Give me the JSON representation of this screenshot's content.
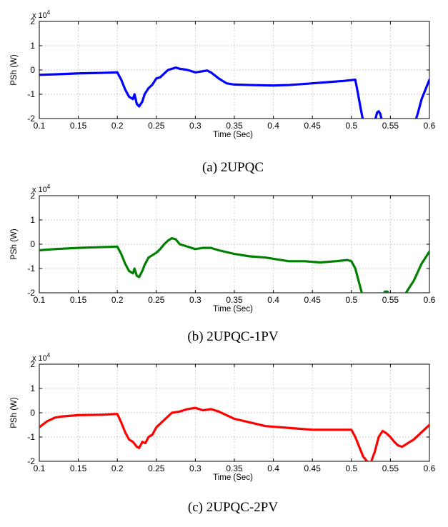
{
  "chart_data": [
    {
      "type": "line",
      "caption": "(a) 2UPQC",
      "xlabel": "Time (Sec)",
      "ylabel": "PSh (W)",
      "multiplier": "x 10",
      "multiplier_exp": "4",
      "xlim": [
        0.1,
        0.6
      ],
      "ylim": [
        -2,
        2
      ],
      "xticks": [
        "0.1",
        "0.15",
        "0.2",
        "0.25",
        "0.3",
        "0.35",
        "0.4",
        "0.45",
        "0.5",
        "0.55",
        "0.6"
      ],
      "yticks": [
        "-2",
        "-1",
        "0",
        "1",
        "2"
      ],
      "grid": true,
      "color": "#0000ff",
      "series": [
        {
          "x": [
            0.1,
            0.12,
            0.15,
            0.18,
            0.2,
            0.205,
            0.21,
            0.215,
            0.22,
            0.222,
            0.225,
            0.228,
            0.232,
            0.235,
            0.24,
            0.245,
            0.25,
            0.255,
            0.26,
            0.265,
            0.27,
            0.275,
            0.28,
            0.29,
            0.3,
            0.31,
            0.315,
            0.32,
            0.33,
            0.34,
            0.35,
            0.37,
            0.4,
            0.42,
            0.45,
            0.47,
            0.49,
            0.505,
            0.508,
            0.512,
            0.515,
            0.52,
            0.525,
            0.53,
            0.533,
            0.535,
            0.537,
            0.54,
            0.545,
            0.55,
            0.56,
            0.57,
            0.58,
            0.585,
            0.59,
            0.595,
            0.6
          ],
          "y": [
            -0.2,
            -0.18,
            -0.14,
            -0.12,
            -0.1,
            -0.4,
            -0.8,
            -1.1,
            -1.2,
            -1.0,
            -1.4,
            -1.5,
            -1.3,
            -1.0,
            -0.75,
            -0.6,
            -0.35,
            -0.3,
            -0.15,
            0.0,
            0.05,
            0.1,
            0.05,
            0.0,
            -0.1,
            -0.05,
            -0.02,
            -0.1,
            -0.35,
            -0.55,
            -0.6,
            -0.62,
            -0.64,
            -0.62,
            -0.55,
            -0.5,
            -0.45,
            -0.4,
            -0.9,
            -1.6,
            -2.1,
            -2.4,
            -2.5,
            -2.1,
            -1.75,
            -1.7,
            -1.8,
            -2.2,
            -2.5,
            -2.5,
            -2.5,
            -2.5,
            -2.3,
            -1.8,
            -1.2,
            -0.8,
            -0.4
          ]
        }
      ]
    },
    {
      "type": "line",
      "caption": "(b) 2UPQC-1PV",
      "xlabel": "Time (Sec)",
      "ylabel": "PSh (W)",
      "multiplier": "x 10",
      "multiplier_exp": "4",
      "xlim": [
        0.1,
        0.6
      ],
      "ylim": [
        -2,
        2
      ],
      "xticks": [
        "0.1",
        "0.15",
        "0.2",
        "0.25",
        "0.3",
        "0.35",
        "0.4",
        "0.45",
        "0.5",
        "0.55",
        "0.6"
      ],
      "yticks": [
        "-2",
        "-1",
        "0",
        "1",
        "2"
      ],
      "grid": true,
      "color": "#007f00",
      "series": [
        {
          "x": [
            0.1,
            0.12,
            0.15,
            0.18,
            0.2,
            0.205,
            0.21,
            0.215,
            0.22,
            0.222,
            0.225,
            0.228,
            0.232,
            0.235,
            0.24,
            0.245,
            0.25,
            0.255,
            0.26,
            0.265,
            0.27,
            0.275,
            0.28,
            0.29,
            0.3,
            0.31,
            0.32,
            0.33,
            0.35,
            0.37,
            0.39,
            0.4,
            0.42,
            0.44,
            0.46,
            0.48,
            0.495,
            0.5,
            0.505,
            0.51,
            0.515,
            0.52,
            0.53,
            0.54,
            0.543,
            0.546,
            0.55,
            0.555,
            0.56,
            0.57,
            0.58,
            0.59,
            0.6
          ],
          "y": [
            -0.25,
            -0.2,
            -0.15,
            -0.12,
            -0.1,
            -0.4,
            -0.8,
            -1.1,
            -1.2,
            -1.0,
            -1.3,
            -1.35,
            -1.1,
            -0.85,
            -0.55,
            -0.45,
            -0.35,
            -0.2,
            0.0,
            0.15,
            0.25,
            0.2,
            0.0,
            -0.1,
            -0.2,
            -0.15,
            -0.15,
            -0.25,
            -0.4,
            -0.5,
            -0.55,
            -0.6,
            -0.7,
            -0.7,
            -0.75,
            -0.7,
            -0.65,
            -0.7,
            -1.0,
            -1.6,
            -2.2,
            -2.5,
            -2.5,
            -2.1,
            -1.95,
            -1.95,
            -2.1,
            -2.5,
            -2.5,
            -2.0,
            -1.5,
            -0.8,
            -0.3
          ]
        }
      ]
    },
    {
      "type": "line",
      "caption": "(c) 2UPQC-2PV",
      "xlabel": "Time (Sec)",
      "ylabel": "PSh (W)",
      "multiplier": "x 10",
      "multiplier_exp": "4",
      "xlim": [
        0.1,
        0.6
      ],
      "ylim": [
        -2,
        2
      ],
      "xticks": [
        "0.1",
        "0.15",
        "0.2",
        "0.25",
        "0.3",
        "0.35",
        "0.4",
        "0.45",
        "0.5",
        "0.55",
        "0.6"
      ],
      "yticks": [
        "-2",
        "-1",
        "0",
        "1",
        "2"
      ],
      "grid": true,
      "color": "#ff0000",
      "series": [
        {
          "x": [
            0.1,
            0.11,
            0.12,
            0.13,
            0.15,
            0.18,
            0.2,
            0.205,
            0.21,
            0.215,
            0.22,
            0.225,
            0.228,
            0.232,
            0.236,
            0.24,
            0.245,
            0.25,
            0.26,
            0.27,
            0.28,
            0.29,
            0.3,
            0.31,
            0.32,
            0.33,
            0.34,
            0.35,
            0.37,
            0.39,
            0.41,
            0.43,
            0.45,
            0.47,
            0.49,
            0.5,
            0.505,
            0.51,
            0.515,
            0.52,
            0.525,
            0.53,
            0.535,
            0.54,
            0.545,
            0.55,
            0.555,
            0.56,
            0.565,
            0.57,
            0.58,
            0.59,
            0.6
          ],
          "y": [
            -0.6,
            -0.35,
            -0.2,
            -0.15,
            -0.1,
            -0.08,
            -0.05,
            -0.4,
            -0.8,
            -1.1,
            -1.2,
            -1.4,
            -1.45,
            -1.2,
            -1.25,
            -1.0,
            -0.9,
            -0.6,
            -0.3,
            0.0,
            0.05,
            0.15,
            0.2,
            0.1,
            0.15,
            0.05,
            -0.1,
            -0.25,
            -0.4,
            -0.55,
            -0.6,
            -0.65,
            -0.7,
            -0.7,
            -0.7,
            -0.7,
            -1.0,
            -1.4,
            -1.8,
            -2.0,
            -2.05,
            -1.6,
            -1.0,
            -0.75,
            -0.85,
            -1.0,
            -1.2,
            -1.35,
            -1.4,
            -1.3,
            -1.1,
            -0.8,
            -0.5
          ]
        }
      ]
    }
  ]
}
